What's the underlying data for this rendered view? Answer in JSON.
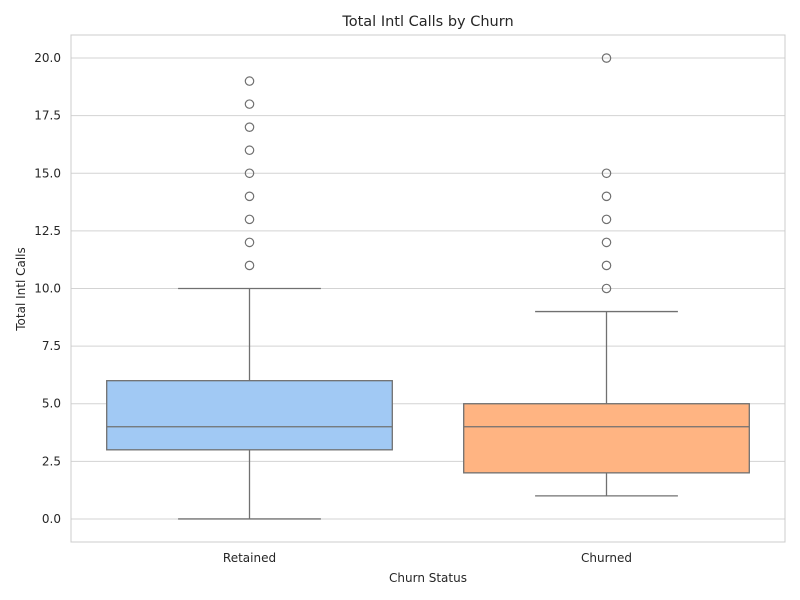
{
  "chart_data": {
    "type": "box",
    "title": "Total Intl Calls by Churn",
    "xlabel": "Churn Status",
    "ylabel": "Total Intl Calls",
    "categories": [
      "Retained",
      "Churned"
    ],
    "ylim": [
      -1,
      21
    ],
    "yticks": [
      0.0,
      2.5,
      5.0,
      7.5,
      10.0,
      12.5,
      15.0,
      17.5,
      20.0
    ],
    "ytick_labels": [
      "0.0",
      "2.5",
      "5.0",
      "7.5",
      "10.0",
      "12.5",
      "15.0",
      "17.5",
      "20.0"
    ],
    "grid": true,
    "boxes": [
      {
        "category": "Retained",
        "whisker_low": 0,
        "q1": 3,
        "median": 4,
        "q3": 6,
        "whisker_high": 10,
        "outliers": [
          11,
          12,
          13,
          14,
          15,
          16,
          17,
          18,
          19
        ],
        "color": "#a1c9f4"
      },
      {
        "category": "Churned",
        "whisker_low": 1,
        "q1": 2,
        "median": 4,
        "q3": 5,
        "whisker_high": 9,
        "outliers": [
          10,
          11,
          12,
          13,
          14,
          15,
          20
        ],
        "color": "#ffb482"
      }
    ]
  }
}
